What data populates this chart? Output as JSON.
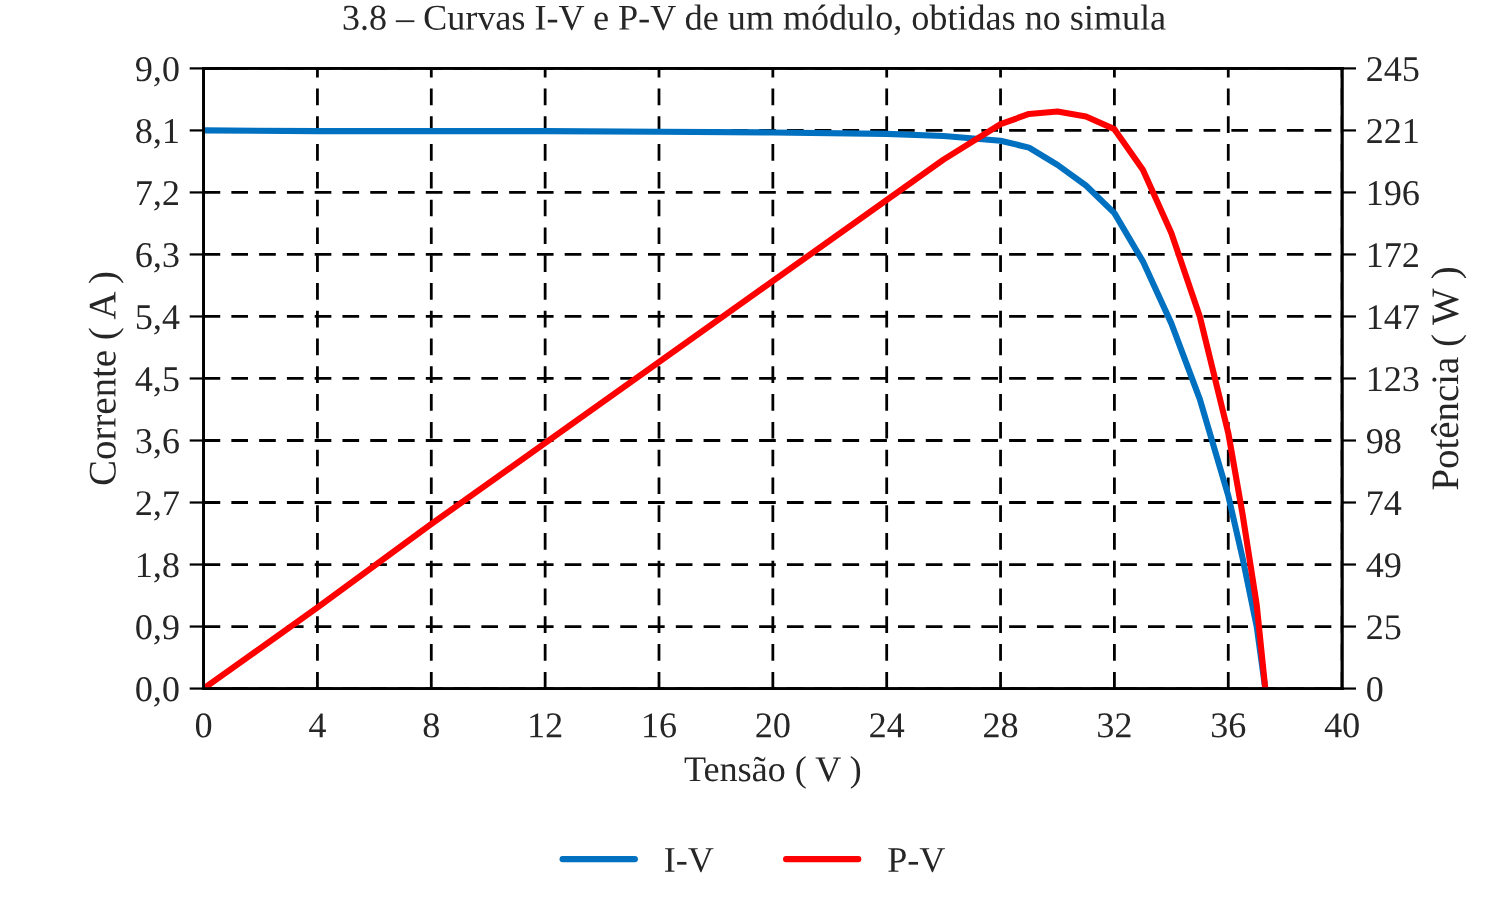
{
  "chart_data": {
    "type": "line",
    "title": "3.8 – Curvas I-V e P-V de um módulo, obtidas no simula",
    "xlabel": "Tensão ( V )",
    "ylabel": "Corrente ( A )",
    "y2label": "Potência ( W )",
    "xlim": [
      0,
      40
    ],
    "xticks": [
      0,
      4,
      8,
      12,
      16,
      20,
      24,
      28,
      32,
      36,
      40
    ],
    "ylim": [
      0,
      9
    ],
    "yticks": [
      {
        "value": 0,
        "label": "0,0"
      },
      {
        "value": 0.9,
        "label": "0,9"
      },
      {
        "value": 1.8,
        "label": "1,8"
      },
      {
        "value": 2.7,
        "label": "2,7"
      },
      {
        "value": 3.6,
        "label": "3,6"
      },
      {
        "value": 4.5,
        "label": "4,5"
      },
      {
        "value": 5.4,
        "label": "5,4"
      },
      {
        "value": 6.3,
        "label": "6,3"
      },
      {
        "value": 7.2,
        "label": "7,2"
      },
      {
        "value": 8.1,
        "label": "8,1"
      },
      {
        "value": 9,
        "label": "9,0"
      }
    ],
    "y2lim": [
      0,
      245
    ],
    "y2ticks": [
      0,
      {
        "value": 24.5,
        "label": "25"
      },
      49,
      {
        "value": 73.5,
        "label": "74"
      },
      98,
      {
        "value": 122.5,
        "label": "123"
      },
      147,
      {
        "value": 171.5,
        "label": "172"
      },
      196,
      {
        "value": 220.5,
        "label": "221"
      },
      245
    ],
    "grid": true,
    "legend": "bottom",
    "line_style": "solid",
    "marker": "none",
    "series": [
      {
        "name": "I-V",
        "color": "#0070c0",
        "x": [
          0,
          4,
          8,
          12,
          16,
          20,
          24,
          26,
          28,
          29,
          30,
          31,
          32,
          33,
          34,
          35,
          36,
          36.5,
          37,
          37.3
        ],
        "values": [
          8.1,
          8.09,
          8.09,
          8.09,
          8.08,
          8.07,
          8.05,
          8.02,
          7.95,
          7.85,
          7.6,
          7.3,
          6.9,
          6.2,
          5.3,
          4.2,
          2.8,
          1.9,
          0.9,
          0
        ]
      },
      {
        "name": "P-V",
        "color": "#ff0000",
        "axis": "y2",
        "x": [
          0,
          4,
          8,
          12,
          16,
          20,
          24,
          26,
          28,
          29,
          30,
          31,
          32,
          33,
          34,
          35,
          36,
          36.5,
          37,
          37.3
        ],
        "values": [
          0,
          32,
          65,
          97,
          129,
          161,
          193,
          209,
          223,
          227,
          228,
          226,
          221,
          205,
          180,
          147,
          101,
          69,
          33,
          0
        ]
      }
    ]
  }
}
